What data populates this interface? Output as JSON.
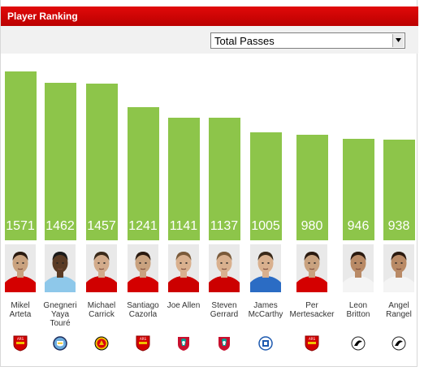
{
  "header": {
    "title": "Player Ranking"
  },
  "filter": {
    "selected": "Total Passes"
  },
  "colors": {
    "header_red": "#cc0000",
    "bar_green": "#8dc54a"
  },
  "chart_data": {
    "type": "bar",
    "metric": "Total Passes",
    "categories": [
      "Mikel Arteta",
      "Gnegneri Yaya Touré",
      "Michael Carrick",
      "Santiago Cazorla",
      "Joe Allen",
      "Steven Gerrard",
      "James McCarthy",
      "Per Mertesacker",
      "Leon Britton",
      "Angel Rangel"
    ],
    "values": [
      1571,
      1462,
      1457,
      1241,
      1141,
      1137,
      1005,
      980,
      946,
      938
    ]
  },
  "players": [
    {
      "name_lines": [
        "Mikel",
        "Arteta"
      ],
      "value": "1571",
      "club": "Arsenal",
      "crest_icon": "arsenal-crest",
      "kit": "arsenal"
    },
    {
      "name_lines": [
        "Gnegneri",
        "Yaya",
        "Touré"
      ],
      "value": "1462",
      "club": "Manchester City",
      "crest_icon": "man-city-crest",
      "kit": "mancity"
    },
    {
      "name_lines": [
        "Michael",
        "Carrick"
      ],
      "value": "1457",
      "club": "Manchester United",
      "crest_icon": "man-utd-crest",
      "kit": "manutd"
    },
    {
      "name_lines": [
        "Santiago",
        "Cazorla"
      ],
      "value": "1241",
      "club": "Arsenal",
      "crest_icon": "arsenal-crest",
      "kit": "arsenal"
    },
    {
      "name_lines": [
        "Joe Allen"
      ],
      "value": "1141",
      "club": "Liverpool",
      "crest_icon": "liverpool-crest",
      "kit": "liverpool"
    },
    {
      "name_lines": [
        "Steven",
        "Gerrard"
      ],
      "value": "1137",
      "club": "Liverpool",
      "crest_icon": "liverpool-crest",
      "kit": "liverpool"
    },
    {
      "name_lines": [
        "James",
        "McCarthy"
      ],
      "value": "1005",
      "club": "Wigan",
      "crest_icon": "wigan-crest",
      "kit": "wigan"
    },
    {
      "name_lines": [
        "Per",
        "Mertesacker"
      ],
      "value": "980",
      "club": "Arsenal",
      "crest_icon": "arsenal-crest",
      "kit": "arsenal"
    },
    {
      "name_lines": [
        "Leon",
        "Britton"
      ],
      "value": "946",
      "club": "Swansea",
      "crest_icon": "swansea-crest",
      "kit": "swansea"
    },
    {
      "name_lines": [
        "Angel",
        "Rangel"
      ],
      "value": "938",
      "club": "Swansea",
      "crest_icon": "swansea-crest",
      "kit": "swansea"
    }
  ]
}
